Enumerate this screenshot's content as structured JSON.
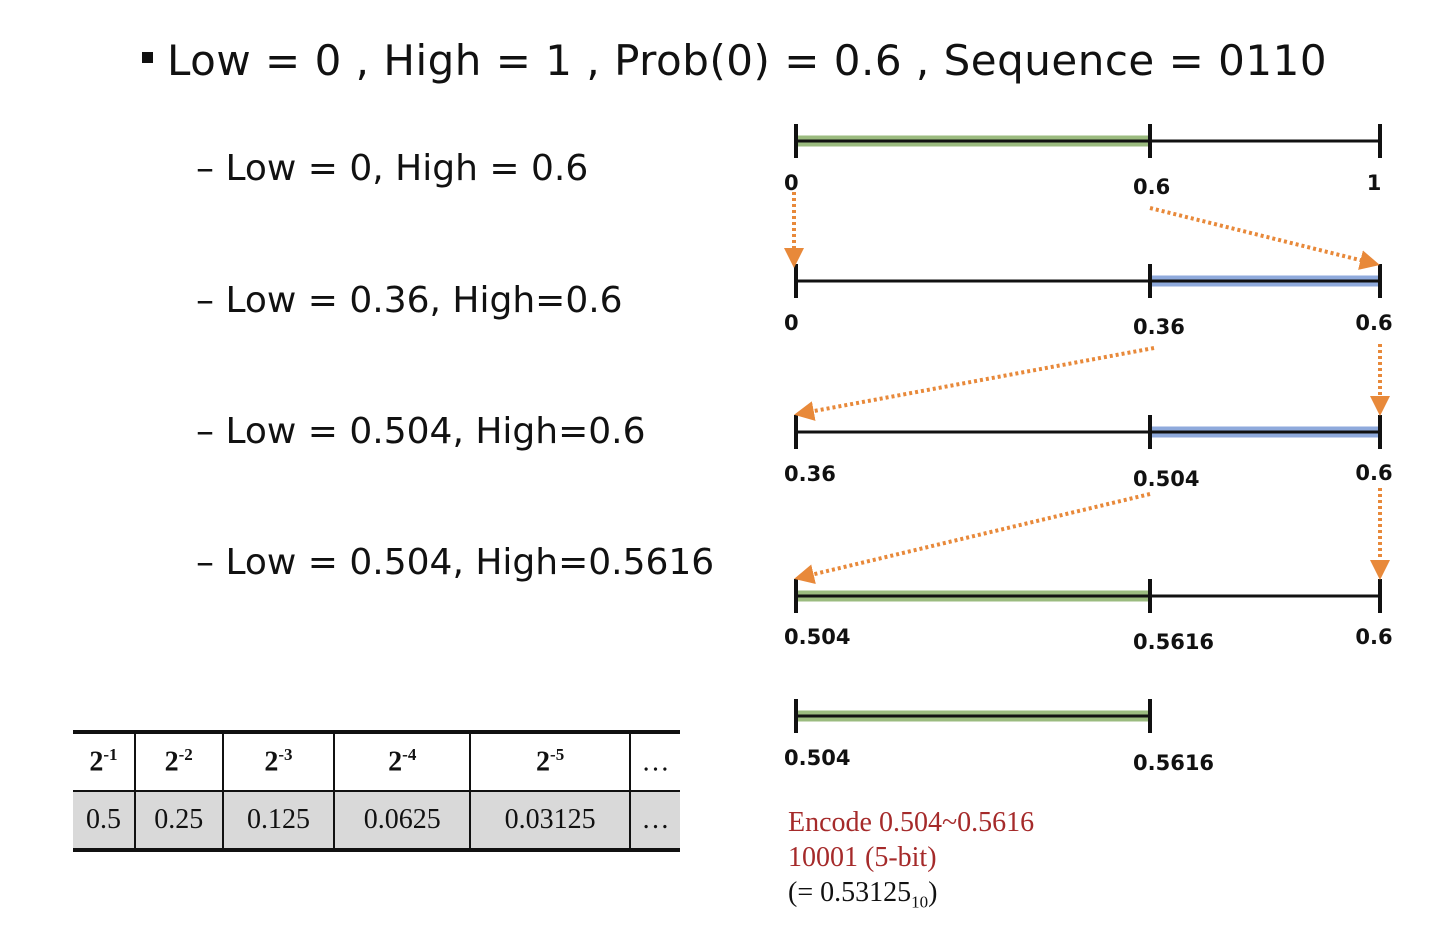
{
  "title": "Low = 0 , High = 1 , Prob(0) = 0.6 , Sequence = 0110",
  "steps": [
    "– Low = 0, High = 0.6",
    "– Low = 0.36, High=0.6",
    "– Low = 0.504, High=0.6",
    "– Low = 0.504, High=0.5616"
  ],
  "intervals": [
    {
      "labels": [
        "0",
        "0.6",
        "1"
      ],
      "highlight": "left",
      "color": "green"
    },
    {
      "labels": [
        "0",
        "0.36",
        "0.6"
      ],
      "highlight": "right",
      "color": "blue"
    },
    {
      "labels": [
        "0.36",
        "0.504",
        "0.6"
      ],
      "highlight": "right",
      "color": "blue"
    },
    {
      "labels": [
        "0.504",
        "0.5616",
        "0.6"
      ],
      "highlight": "left",
      "color": "green"
    },
    {
      "labels": [
        "0.504",
        "0.5616"
      ],
      "highlight": "full",
      "color": "green"
    }
  ],
  "colors": {
    "green": "#9bbb7f",
    "blue": "#8faadc",
    "arrow": "#e8893a",
    "encode_red": "#a52a2a"
  },
  "table": {
    "headers": [
      {
        "base": "2",
        "exp": "-1"
      },
      {
        "base": "2",
        "exp": "-2"
      },
      {
        "base": "2",
        "exp": "-3"
      },
      {
        "base": "2",
        "exp": "-4"
      },
      {
        "base": "2",
        "exp": "-5"
      },
      {
        "base": "…",
        "exp": ""
      }
    ],
    "values": [
      "0.5",
      "0.25",
      "0.125",
      "0.0625",
      "0.03125",
      "…"
    ]
  },
  "encode": {
    "line1": "Encode 0.504~0.5616",
    "line2": "10001 (5-bit)",
    "line3_pre": "(= 0.53125",
    "line3_sub": "10",
    "line3_post": ")"
  }
}
